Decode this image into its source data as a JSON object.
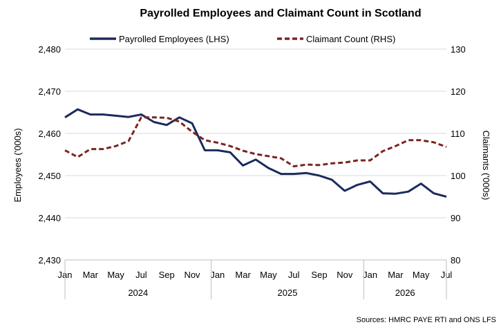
{
  "chart_data": {
    "type": "line",
    "title": "Payrolled Employees and Claimant Count in Scotland",
    "source": "Sources: HMRC PAYE RTI and ONS LFS",
    "y_left": {
      "label": "Employees ('000s)",
      "range": [
        2430,
        2480
      ],
      "ticks": [
        "2,430",
        "2,440",
        "2,450",
        "2,460",
        "2,470",
        "2,480"
      ]
    },
    "y_right": {
      "label": "Claimants ('000s)",
      "range": [
        80,
        130
      ],
      "ticks": [
        "80",
        "90",
        "100",
        "110",
        "120",
        "130"
      ]
    },
    "month_labels": [
      "Jan",
      "Mar",
      "May",
      "Jul",
      "Sep",
      "Nov",
      "Jan",
      "Mar",
      "May",
      "Jul",
      "Sep",
      "Nov",
      "Jan",
      "Mar",
      "May",
      "Jul"
    ],
    "years": [
      "2024",
      "2025",
      "2026"
    ],
    "grid": "horizontal",
    "legend_position": "top",
    "series": [
      {
        "name": "Payrolled Employees (LHS)",
        "axis": "left",
        "color": "#1b2a5c",
        "dash": "solid",
        "values": [
          2463.8,
          2465.7,
          2464.5,
          2464.5,
          2464.2,
          2463.9,
          2464.5,
          2462.7,
          2462.0,
          2463.8,
          2462.4,
          2456.0,
          2456.0,
          2455.5,
          2452.4,
          2453.8,
          2451.8,
          2450.4,
          2450.4,
          2450.6,
          2450.0,
          2449.0,
          2446.4,
          2447.8,
          2448.6,
          2445.8,
          2445.7,
          2446.2,
          2448.1,
          2445.8,
          2445.0
        ]
      },
      {
        "name": "Claimant Count (RHS)",
        "axis": "right",
        "color": "#7b2420",
        "dash": "dashed",
        "values": [
          106.0,
          104.4,
          106.3,
          106.3,
          107.0,
          108.2,
          113.8,
          113.8,
          113.7,
          112.8,
          110.4,
          108.4,
          107.8,
          107.0,
          105.9,
          105.1,
          104.6,
          104.1,
          102.2,
          102.6,
          102.5,
          102.9,
          103.1,
          103.6,
          103.6,
          105.8,
          107.0,
          108.4,
          108.4,
          107.9,
          106.8
        ]
      }
    ]
  }
}
